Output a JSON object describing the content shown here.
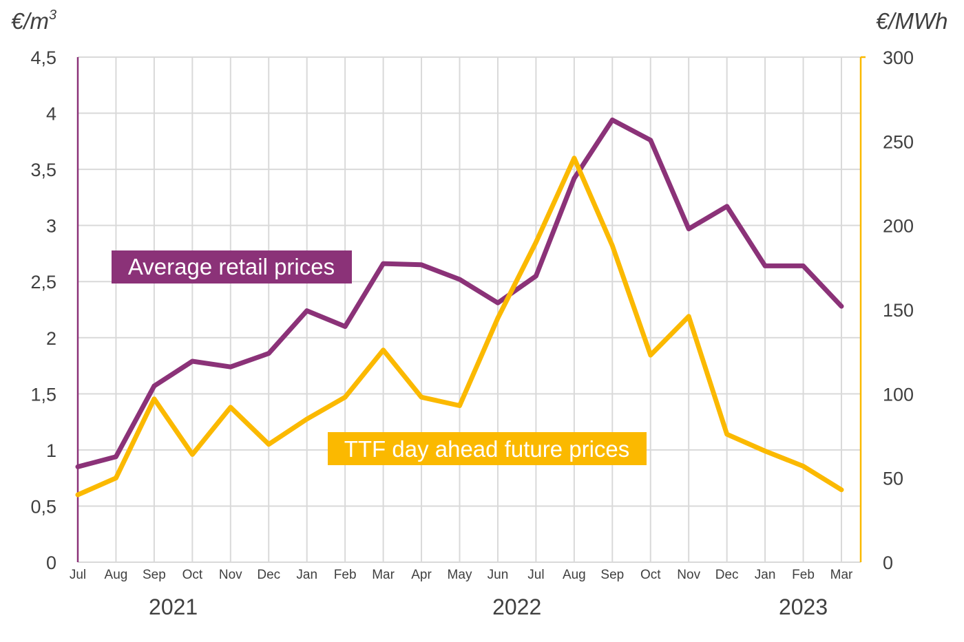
{
  "chart_data": {
    "type": "line",
    "left_unit": "€/m",
    "left_unit_sup": "3",
    "right_unit": "€/MWh",
    "left_ylim": [
      0,
      4.5
    ],
    "right_ylim": [
      0,
      300
    ],
    "left_ticks": [
      "0",
      "0,5",
      "1",
      "1,5",
      "2",
      "2,5",
      "3",
      "3,5",
      "4",
      "4,5"
    ],
    "right_ticks": [
      "0",
      "50",
      "100",
      "150",
      "200",
      "250",
      "300"
    ],
    "categories": [
      "Jul",
      "Aug",
      "Sep",
      "Oct",
      "Nov",
      "Dec",
      "Jan",
      "Feb",
      "Mar",
      "Apr",
      "May",
      "Jun",
      "Jul",
      "Aug",
      "Sep",
      "Oct",
      "Nov",
      "Dec",
      "Jan",
      "Feb",
      "Mar"
    ],
    "years": [
      {
        "label": "2021",
        "from": 0,
        "to": 5
      },
      {
        "label": "2022",
        "from": 6,
        "to": 17
      },
      {
        "label": "2023",
        "from": 18,
        "to": 20
      }
    ],
    "grid": true,
    "series": [
      {
        "name": "Average retail prices",
        "axis": "left",
        "color": "#8b3278",
        "values": [
          0.85,
          0.94,
          1.57,
          1.79,
          1.74,
          1.86,
          2.24,
          2.1,
          2.66,
          2.65,
          2.52,
          2.31,
          2.55,
          3.42,
          3.94,
          3.76,
          2.97,
          3.17,
          2.64,
          2.64,
          2.28
        ]
      },
      {
        "name": "TTF day ahead future prices",
        "axis": "right",
        "color": "#fbb900",
        "values": [
          40,
          50,
          97,
          64,
          92,
          70,
          85,
          98,
          126,
          98,
          93,
          145,
          190,
          240,
          188,
          123,
          146,
          76,
          66,
          57,
          43
        ]
      }
    ]
  }
}
